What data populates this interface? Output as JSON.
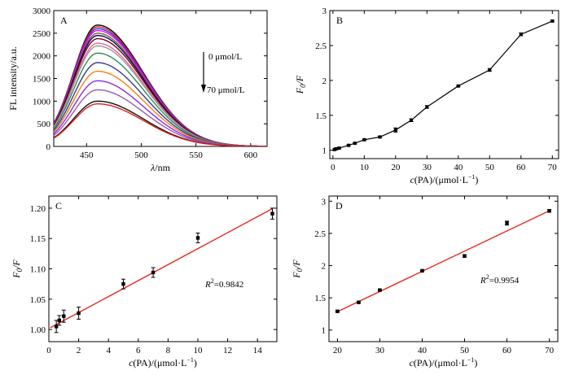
{
  "chart_data": [
    {
      "panel": "A",
      "type": "line",
      "xlabel_italic": "λ",
      "xlabel_rest": "/nm",
      "ylabel": "FL intensity/a.u.",
      "xlim": [
        420,
        615
      ],
      "ylim": [
        0,
        3000
      ],
      "xticks": [
        450,
        500,
        550,
        600
      ],
      "yticks": [
        0,
        500,
        1000,
        1500,
        2000,
        2500,
        3000
      ],
      "arrow_top_label": "0 μmol/L",
      "arrow_bottom_label": "70 μmol/L",
      "peak_wavelength": 460,
      "series": [
        {
          "peak": 2680,
          "color": "#000000"
        },
        {
          "peak": 2640,
          "color": "#d62728"
        },
        {
          "peak": 2600,
          "color": "#1f3bd6"
        },
        {
          "peak": 2560,
          "color": "#ff00ff"
        },
        {
          "peak": 2500,
          "color": "#6b6b00"
        },
        {
          "peak": 2450,
          "color": "#00008b"
        },
        {
          "peak": 2380,
          "color": "#800000"
        },
        {
          "peak": 2280,
          "color": "#e066a0"
        },
        {
          "peak": 2220,
          "color": "#999999"
        },
        {
          "peak": 2060,
          "color": "#2e8b57"
        },
        {
          "peak": 1850,
          "color": "#3a3a8c"
        },
        {
          "peak": 1660,
          "color": "#ff7f0e"
        },
        {
          "peak": 1450,
          "color": "#8a2be2"
        },
        {
          "peak": 1250,
          "color": "#9b59b6"
        },
        {
          "peak": 1000,
          "color": "#111111"
        },
        {
          "peak": 940,
          "color": "#e02020"
        }
      ]
    },
    {
      "panel": "B",
      "type": "line",
      "xlabel": "c(PA)/(μmol·L⁻¹)",
      "ylabel": "F0/F",
      "xlim": [
        -1,
        72
      ],
      "ylim": [
        0.88,
        3.0
      ],
      "xticks": [
        0,
        10,
        20,
        30,
        40,
        50,
        60,
        70
      ],
      "yticks": [
        1.0,
        1.5,
        2.0,
        2.5,
        3.0
      ],
      "x": [
        0.5,
        1,
        2,
        5,
        7,
        10,
        15,
        20,
        25,
        30,
        40,
        50,
        60,
        70
      ],
      "y": [
        1.01,
        1.02,
        1.03,
        1.07,
        1.1,
        1.15,
        1.19,
        1.29,
        1.43,
        1.62,
        1.92,
        2.15,
        2.66,
        2.85
      ],
      "err": [
        0.01,
        0.01,
        0.01,
        0.01,
        0.01,
        0.01,
        0.01,
        0.03,
        0.02,
        0.02,
        0.01,
        0.02,
        0.02,
        0.01
      ]
    },
    {
      "panel": "C",
      "type": "scatter",
      "xlabel": "c(PA)/(μmol·L⁻¹)",
      "ylabel": "F0/F",
      "xlim": [
        0,
        15.3
      ],
      "ylim": [
        0.98,
        1.22
      ],
      "xticks": [
        0,
        2,
        4,
        6,
        8,
        10,
        12,
        14
      ],
      "yticks": [
        1.0,
        1.05,
        1.1,
        1.15,
        1.2
      ],
      "ytick_labels": [
        "1.00",
        "1.05",
        "1.10",
        "1.15",
        "1.20"
      ],
      "x": [
        0.5,
        0.7,
        1,
        2,
        5,
        7,
        10,
        15
      ],
      "y": [
        1.005,
        1.015,
        1.022,
        1.027,
        1.075,
        1.094,
        1.151,
        1.191
      ],
      "err": [
        0.01,
        0.008,
        0.01,
        0.01,
        0.008,
        0.008,
        0.008,
        0.009
      ],
      "fit": {
        "slope": 0.01317,
        "intercept": 1.0016,
        "color": "#e8281e"
      },
      "r2_label": "R",
      "r2_value": "=0.9842"
    },
    {
      "panel": "D",
      "type": "scatter",
      "xlabel": "c(PA)/(μmol·L⁻¹)",
      "ylabel": "F0/F",
      "xlim": [
        18,
        72
      ],
      "ylim": [
        0.82,
        3.08
      ],
      "xticks": [
        20,
        30,
        40,
        50,
        60,
        70
      ],
      "yticks": [
        1.0,
        1.5,
        2.0,
        2.5,
        3.0
      ],
      "x": [
        20,
        25,
        30,
        40,
        50,
        60,
        70
      ],
      "y": [
        1.29,
        1.43,
        1.62,
        1.92,
        2.15,
        2.66,
        2.85
      ],
      "err": [
        0.01,
        0.01,
        0.01,
        0.01,
        0.02,
        0.03,
        0.02
      ],
      "fit": {
        "slope": 0.03132,
        "intercept": 0.659,
        "color": "#e8281e"
      },
      "r2_label": "R",
      "r2_value": "=0.9954"
    }
  ]
}
